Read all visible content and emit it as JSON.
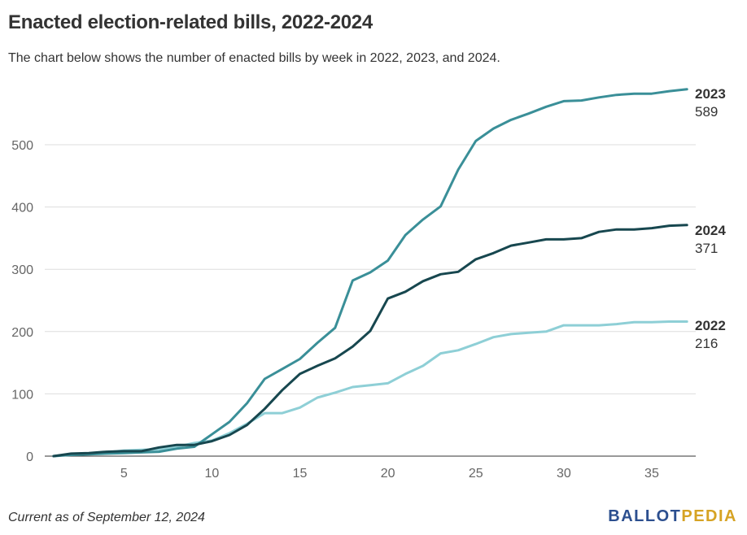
{
  "title": "Enacted election-related bills, 2022-2024",
  "subtitle": "The chart below shows the number of enacted bills by week in 2022, 2023, and 2024.",
  "footnote": "Current as of September 12, 2024",
  "logo": {
    "part1": "BALLOT",
    "part2": "PEDIA"
  },
  "chart_data": {
    "type": "line",
    "title": "Enacted election-related bills, 2022-2024",
    "xlabel": "",
    "ylabel": "",
    "x": [
      1,
      2,
      3,
      4,
      5,
      6,
      7,
      8,
      9,
      10,
      11,
      12,
      13,
      14,
      15,
      16,
      17,
      18,
      19,
      20,
      21,
      22,
      23,
      24,
      25,
      26,
      27,
      28,
      29,
      30,
      31,
      32,
      33,
      34,
      35,
      36,
      37
    ],
    "xlim": [
      0.5,
      37.5
    ],
    "ylim": [
      0,
      600
    ],
    "xticks": [
      5,
      10,
      15,
      20,
      25,
      30,
      35
    ],
    "yticks": [
      0,
      100,
      200,
      300,
      400,
      500
    ],
    "grid": true,
    "series": [
      {
        "name": "2022",
        "end_label": "216",
        "color": "#8ecfd6",
        "values": [
          0,
          3,
          4,
          6,
          9,
          10,
          11,
          15,
          21,
          25,
          37,
          52,
          69,
          69,
          78,
          94,
          102,
          111,
          114,
          117,
          132,
          145,
          165,
          170,
          180,
          191,
          196,
          198,
          200,
          210,
          210,
          210,
          212,
          215,
          215,
          216,
          216
        ]
      },
      {
        "name": "2023",
        "end_label": "589",
        "color": "#3a8f98",
        "values": [
          0,
          2,
          3,
          4,
          5,
          6,
          7,
          12,
          15,
          35,
          55,
          85,
          124,
          140,
          156,
          182,
          206,
          282,
          295,
          314,
          355,
          380,
          401,
          460,
          506,
          526,
          540,
          550,
          561,
          570,
          571,
          576,
          580,
          582,
          582,
          586,
          589
        ]
      },
      {
        "name": "2024",
        "end_label": "371",
        "color": "#17474f",
        "values": [
          0,
          4,
          5,
          7,
          8,
          8,
          14,
          18,
          18,
          24,
          34,
          50,
          76,
          106,
          132,
          145,
          157,
          176,
          201,
          253,
          264,
          281,
          292,
          296,
          316,
          326,
          338,
          343,
          348,
          348,
          350,
          360,
          364,
          364,
          366,
          370,
          371
        ]
      }
    ]
  }
}
